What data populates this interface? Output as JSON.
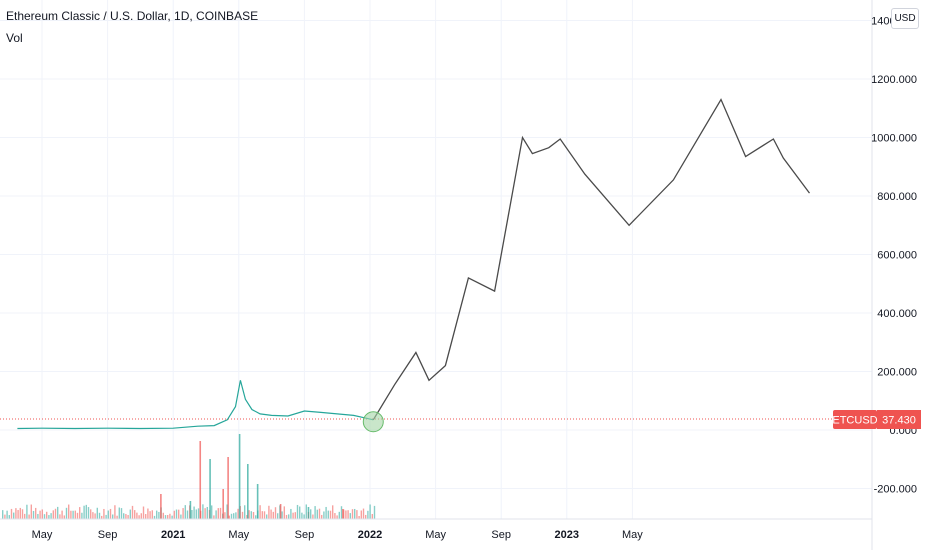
{
  "header": {
    "symbol_title": "Ethereum Classic / U.S. Dollar, 1D, COINBASE",
    "volume_label": "Vol"
  },
  "currency_button": "USD",
  "price_badge": {
    "symbol": "ETCUSD",
    "price": "37.430"
  },
  "colors": {
    "grid": "#f0f3fa",
    "line": "#4a4a4a",
    "up": "#26a69a",
    "down": "#ef5350",
    "badge": "#ef5350",
    "circle_fill": "#a5d6a7",
    "circle_stroke": "#66bb6a"
  },
  "chart_data": {
    "type": "line",
    "title": "Ethereum Classic / U.S. Dollar, 1D, COINBASE",
    "xlabel": "",
    "ylabel": "",
    "ylim": [
      -300,
      1400
    ],
    "y_ticks": [
      {
        "value": 1400,
        "label": "1400.000"
      },
      {
        "value": 1200,
        "label": "1200.000"
      },
      {
        "value": 1000,
        "label": "1000.000"
      },
      {
        "value": 800,
        "label": "800.000"
      },
      {
        "value": 600,
        "label": "600.000"
      },
      {
        "value": 400,
        "label": "400.000"
      },
      {
        "value": 200,
        "label": "200.000"
      },
      {
        "value": 0,
        "label": "0.000"
      },
      {
        "value": -200,
        "label": "-200.000"
      }
    ],
    "x_ticks": [
      {
        "month": 0,
        "label": "May",
        "bold": false
      },
      {
        "month": 4,
        "label": "Sep",
        "bold": false
      },
      {
        "month": 8,
        "label": "2021",
        "bold": true
      },
      {
        "month": 12,
        "label": "May",
        "bold": false
      },
      {
        "month": 16,
        "label": "Sep",
        "bold": false
      },
      {
        "month": 20,
        "label": "2022",
        "bold": true
      },
      {
        "month": 24,
        "label": "May",
        "bold": false
      },
      {
        "month": 28,
        "label": "Sep",
        "bold": false
      },
      {
        "month": 32,
        "label": "2023",
        "bold": true
      },
      {
        "month": 36,
        "label": "May",
        "bold": false
      }
    ],
    "grid": true,
    "current_price": 37.43,
    "series": [
      {
        "kind": "historical",
        "values": [
          {
            "m": -1.5,
            "y": 5
          },
          {
            "m": 0,
            "y": 6
          },
          {
            "m": 2,
            "y": 5
          },
          {
            "m": 4,
            "y": 6
          },
          {
            "m": 6,
            "y": 5
          },
          {
            "m": 8,
            "y": 6
          },
          {
            "m": 9.5,
            "y": 13
          },
          {
            "m": 10.5,
            "y": 15
          },
          {
            "m": 11.3,
            "y": 35
          },
          {
            "m": 11.8,
            "y": 80
          },
          {
            "m": 12.1,
            "y": 170
          },
          {
            "m": 12.4,
            "y": 105
          },
          {
            "m": 12.8,
            "y": 70
          },
          {
            "m": 13.3,
            "y": 55
          },
          {
            "m": 14,
            "y": 50
          },
          {
            "m": 15,
            "y": 48
          },
          {
            "m": 16,
            "y": 65
          },
          {
            "m": 17,
            "y": 60
          },
          {
            "m": 18,
            "y": 55
          },
          {
            "m": 19,
            "y": 50
          },
          {
            "m": 19.8,
            "y": 40
          },
          {
            "m": 20.2,
            "y": 35
          }
        ]
      },
      {
        "kind": "projection",
        "values": [
          {
            "m": 20.2,
            "y": 35
          },
          {
            "m": 21.5,
            "y": 155
          },
          {
            "m": 22.8,
            "y": 265
          },
          {
            "m": 23.6,
            "y": 170
          },
          {
            "m": 24.6,
            "y": 220
          },
          {
            "m": 26,
            "y": 520
          },
          {
            "m": 27.6,
            "y": 475
          },
          {
            "m": 29.3,
            "y": 1000
          },
          {
            "m": 29.9,
            "y": 945
          },
          {
            "m": 30.9,
            "y": 965
          },
          {
            "m": 31.6,
            "y": 995
          },
          {
            "m": 33.1,
            "y": 875
          },
          {
            "m": 35.8,
            "y": 700
          },
          {
            "m": 38.5,
            "y": 855
          },
          {
            "m": 41.4,
            "y": 1130
          },
          {
            "m": 42.9,
            "y": 935
          },
          {
            "m": 44.6,
            "y": 995
          },
          {
            "m": 45.2,
            "y": 930
          },
          {
            "m": 46.8,
            "y": 810
          }
        ]
      }
    ],
    "volume": [
      {
        "m": 12.0,
        "v": 0.85
      },
      {
        "m": 11.3,
        "v": 0.62
      },
      {
        "m": 12.5,
        "v": 0.55
      },
      {
        "m": 9.6,
        "v": 0.78
      },
      {
        "m": 10.2,
        "v": 0.6
      },
      {
        "m": 11.0,
        "v": 0.3
      },
      {
        "m": 13.1,
        "v": 0.35
      },
      {
        "m": 7.2,
        "v": 0.25
      },
      {
        "m": 9.0,
        "v": 0.18
      },
      {
        "m": 14.5,
        "v": 0.15
      },
      {
        "m": 16.2,
        "v": 0.12
      },
      {
        "m": 18.3,
        "v": 0.1
      }
    ],
    "highlight": {
      "m": 20.2,
      "y": 35
    }
  }
}
